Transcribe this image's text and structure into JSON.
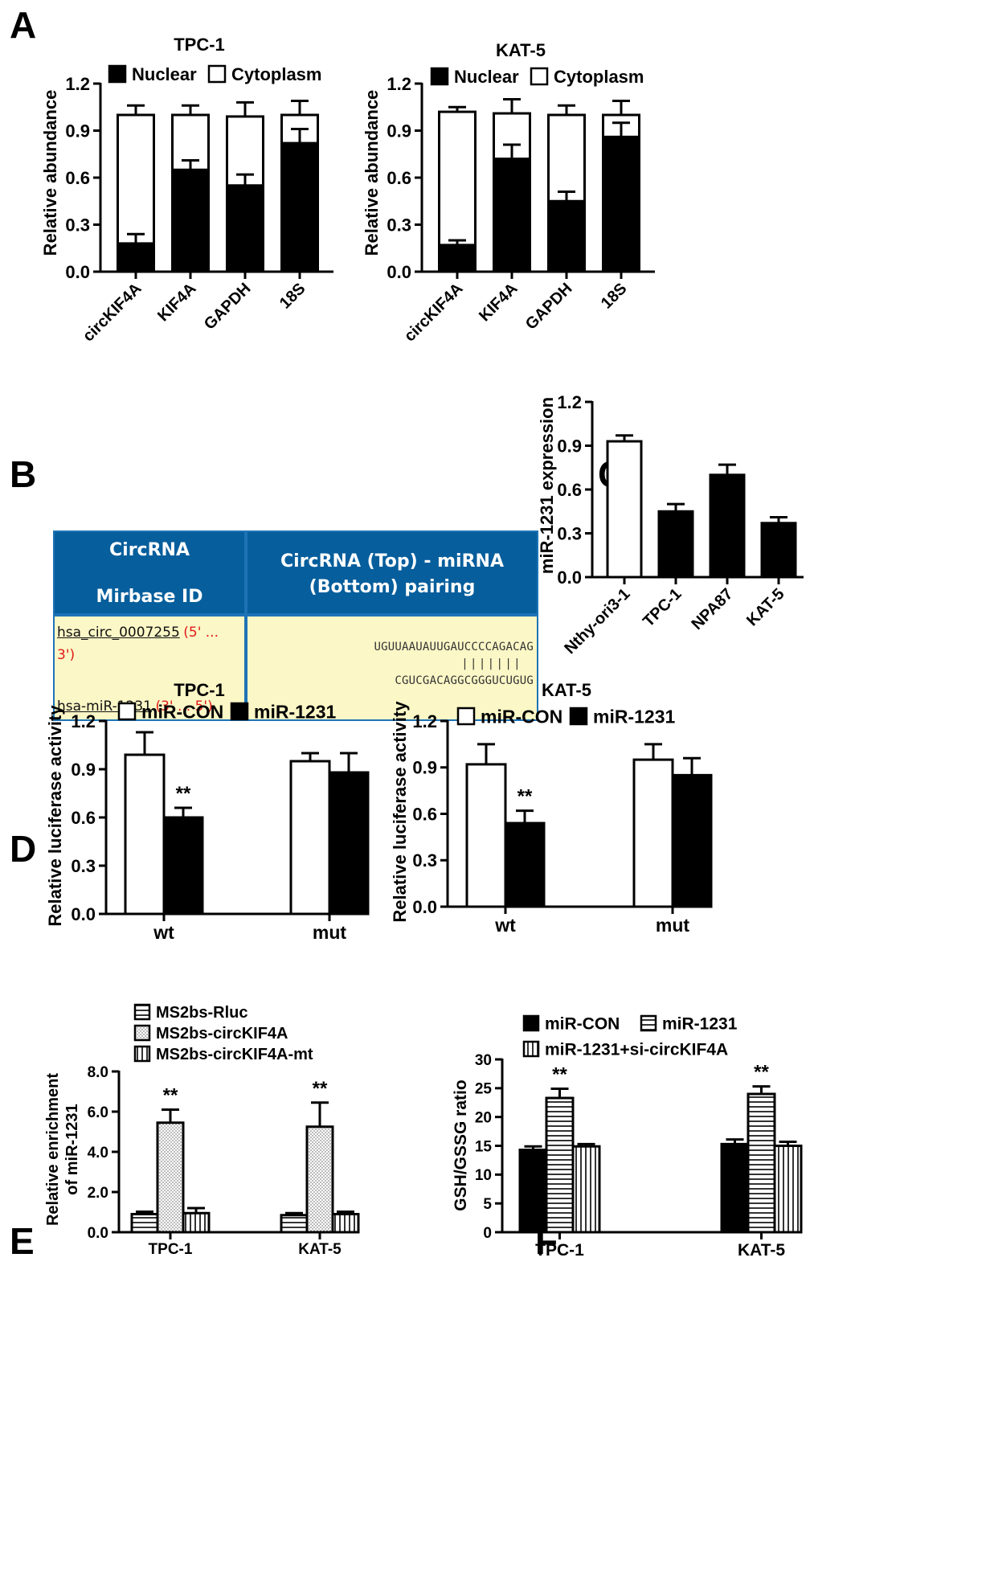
{
  "panels": {
    "A": "A",
    "B": "B",
    "C": "C",
    "D": "D",
    "E": "E",
    "F": "F"
  },
  "table_b": {
    "header_left_line1": "CircRNA",
    "header_left_line2": "Mirbase ID",
    "header_right_line1": "CircRNA (Top) - miRNA",
    "header_right_line2": "(Bottom) pairing",
    "circ_id": "hsa_circ_0007255",
    "circ_dir_a": "(5' ...",
    "circ_dir_b": "3')",
    "mirna_id": "hsa-miR-1231",
    "mirna_dir": "(3' ... 5')",
    "seq_top": "UGUUAAUAUUGAUCCCCAGACAG",
    "seq_pair": "|||||||",
    "seq_bottom": "CGUCGACAGGCGGGUCUGUG"
  },
  "chart_data": [
    {
      "id": "A1",
      "type": "bar",
      "stacked": true,
      "title": "TPC-1",
      "ylabel": "Relative abundance",
      "xlabel": "",
      "ylim": [
        0,
        1.2
      ],
      "yticks": [
        "0.0",
        "0.3",
        "0.6",
        "0.9",
        "1.2"
      ],
      "categories": [
        "circKIF4A",
        "KIF4A",
        "GAPDH",
        "18S"
      ],
      "series": [
        {
          "name": "Nuclear",
          "fill": "black",
          "values": [
            0.18,
            0.65,
            0.55,
            0.82
          ],
          "errors": [
            0.06,
            0.06,
            0.07,
            0.09
          ]
        },
        {
          "name": "Cytoplasm",
          "fill": "white",
          "values": [
            0.82,
            0.35,
            0.44,
            0.18
          ],
          "errors": [
            0.06,
            0.06,
            0.09,
            0.09
          ]
        }
      ],
      "legend": "top"
    },
    {
      "id": "A2",
      "type": "bar",
      "stacked": true,
      "title": "KAT-5",
      "ylabel": "Relative abundance",
      "xlabel": "",
      "ylim": [
        0,
        1.2
      ],
      "yticks": [
        "0.0",
        "0.3",
        "0.6",
        "0.9",
        "1.2"
      ],
      "categories": [
        "circKIF4A",
        "KIF4A",
        "GAPDH",
        "18S"
      ],
      "series": [
        {
          "name": "Nuclear",
          "fill": "black",
          "values": [
            0.17,
            0.72,
            0.45,
            0.86
          ],
          "errors": [
            0.03,
            0.09,
            0.06,
            0.09
          ]
        },
        {
          "name": "Cytoplasm",
          "fill": "white",
          "values": [
            0.85,
            0.29,
            0.55,
            0.14
          ],
          "errors": [
            0.03,
            0.09,
            0.06,
            0.09
          ]
        }
      ],
      "legend": "top"
    },
    {
      "id": "C",
      "type": "bar",
      "title": "",
      "ylabel": "miR-1231 expression",
      "xlabel": "",
      "ylim": [
        0,
        1.2
      ],
      "yticks": [
        "0.0",
        "0.3",
        "0.6",
        "0.9",
        "1.2"
      ],
      "categories": [
        "Nthy-ori3-1",
        "TPC-1",
        "NPA87",
        "KAT-5"
      ],
      "values": [
        0.93,
        0.45,
        0.7,
        0.37
      ],
      "errors": [
        0.04,
        0.05,
        0.07,
        0.04
      ],
      "fills": [
        "white",
        "black",
        "black",
        "black"
      ]
    },
    {
      "id": "D1",
      "type": "bar",
      "title": "TPC-1",
      "ylabel": "Relative luciferase activity",
      "xlabel": "",
      "ylim": [
        0,
        1.2
      ],
      "yticks": [
        "0.0",
        "0.3",
        "0.6",
        "0.9",
        "1.2"
      ],
      "categories": [
        "wt",
        "mut"
      ],
      "series": [
        {
          "name": "miR-CON",
          "fill": "white",
          "values": [
            0.99,
            0.95
          ],
          "errors": [
            0.14,
            0.05
          ]
        },
        {
          "name": "miR-1231",
          "fill": "black",
          "values": [
            0.6,
            0.88
          ],
          "errors": [
            0.06,
            0.12
          ]
        }
      ],
      "annotations": [
        {
          "category": "wt",
          "series": "miR-1231",
          "text": "**"
        }
      ],
      "legend": "top"
    },
    {
      "id": "D2",
      "type": "bar",
      "title": "KAT-5",
      "ylabel": "Relative luciferase activity",
      "xlabel": "",
      "ylim": [
        0,
        1.2
      ],
      "yticks": [
        "0.0",
        "0.3",
        "0.6",
        "0.9",
        "1.2"
      ],
      "categories": [
        "wt",
        "mut"
      ],
      "series": [
        {
          "name": "miR-CON",
          "fill": "white",
          "values": [
            0.92,
            0.95
          ],
          "errors": [
            0.13,
            0.1
          ]
        },
        {
          "name": "miR-1231",
          "fill": "black",
          "values": [
            0.54,
            0.85
          ],
          "errors": [
            0.08,
            0.11
          ]
        }
      ],
      "annotations": [
        {
          "category": "wt",
          "series": "miR-1231",
          "text": "**"
        }
      ],
      "legend": "top"
    },
    {
      "id": "E",
      "type": "bar",
      "title": "",
      "ylabel": "Relative enrichment",
      "ylabel2": "of miR-1231",
      "xlabel": "",
      "ylim": [
        0,
        8
      ],
      "yticks": [
        "0.0",
        "2.0",
        "4.0",
        "6.0",
        "8.0"
      ],
      "categories": [
        "TPC-1",
        "KAT-5"
      ],
      "series": [
        {
          "name": "MS2bs-Rluc",
          "fill": "hlines",
          "values": [
            0.9,
            0.85
          ],
          "errors": [
            0.12,
            0.1
          ]
        },
        {
          "name": "MS2bs-circKIF4A",
          "fill": "dots",
          "values": [
            5.45,
            5.25
          ],
          "errors": [
            0.65,
            1.2
          ]
        },
        {
          "name": "MS2bs-circKIF4A-mt",
          "fill": "vlines",
          "values": [
            0.95,
            0.9
          ],
          "errors": [
            0.25,
            0.12
          ]
        }
      ],
      "annotations": [
        {
          "category": "TPC-1",
          "series": "MS2bs-circKIF4A",
          "text": "**"
        },
        {
          "category": "KAT-5",
          "series": "MS2bs-circKIF4A",
          "text": "**"
        }
      ],
      "legend": "top-left"
    },
    {
      "id": "F",
      "type": "bar",
      "title": "",
      "ylabel": "GSH/GSSG ratio",
      "xlabel": "",
      "ylim": [
        0,
        30
      ],
      "yticks": [
        "0",
        "5",
        "10",
        "15",
        "20",
        "25",
        "30"
      ],
      "categories": [
        "TPC-1",
        "KAT-5"
      ],
      "series": [
        {
          "name": "miR-CON",
          "fill": "black",
          "values": [
            14.3,
            15.3
          ],
          "errors": [
            0.6,
            0.8
          ]
        },
        {
          "name": "miR-1231",
          "fill": "hlines",
          "values": [
            23.3,
            24.0
          ],
          "errors": [
            1.6,
            1.3
          ]
        },
        {
          "name": "miR-1231+si-circKIF4A",
          "fill": "vlines",
          "values": [
            14.9,
            15.0
          ],
          "errors": [
            0.4,
            0.7
          ]
        }
      ],
      "annotations": [
        {
          "category": "TPC-1",
          "series": "miR-1231",
          "text": "**"
        },
        {
          "category": "KAT-5",
          "series": "miR-1231",
          "text": "**"
        }
      ],
      "legend": "top"
    }
  ]
}
